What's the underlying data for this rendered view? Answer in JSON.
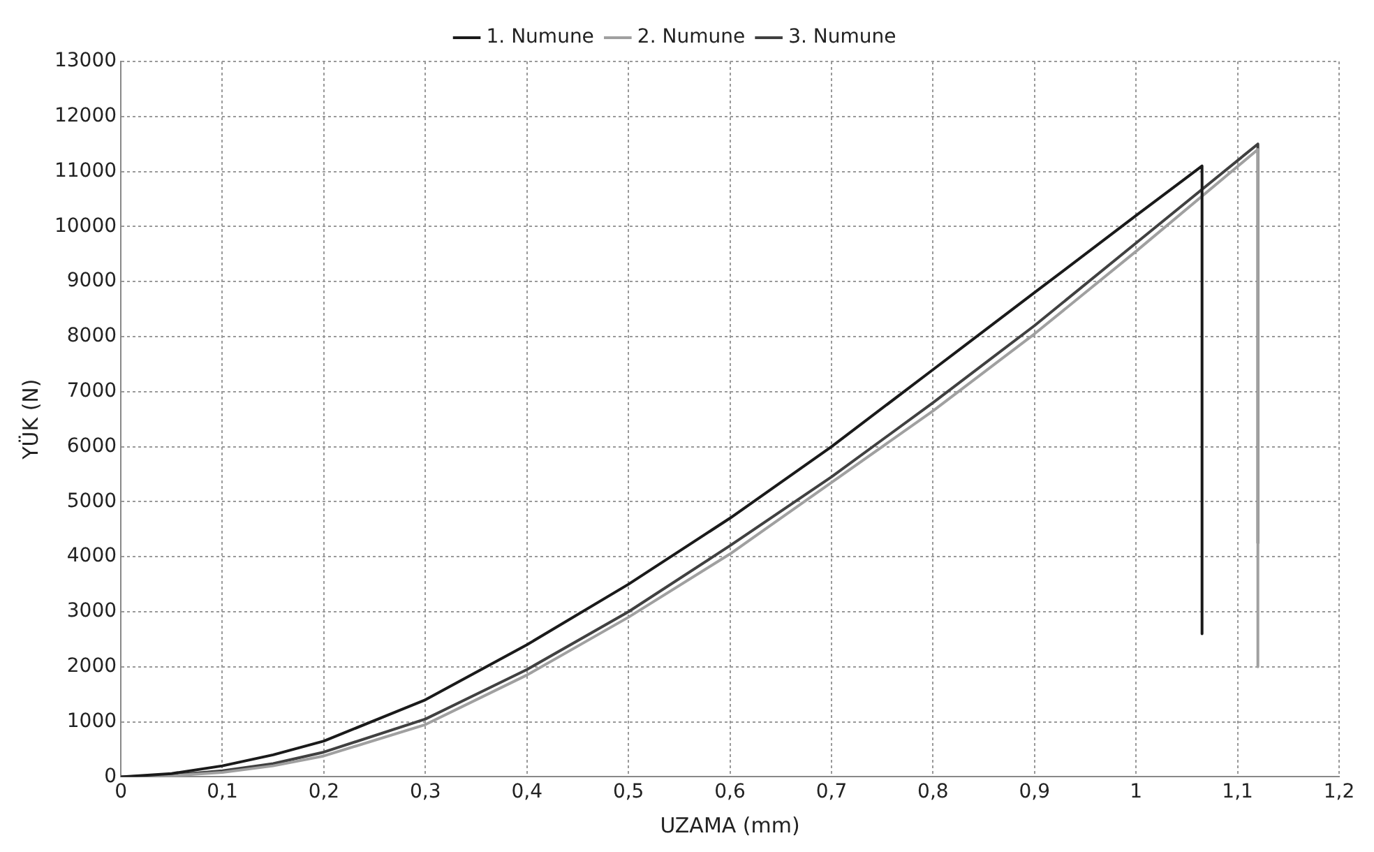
{
  "chart_data": {
    "type": "line",
    "xlabel": "UZAMA (mm)",
    "ylabel": "YÜK (N)",
    "xlim": [
      0,
      1.2
    ],
    "xticks": [
      0,
      {
        "value": 0.1,
        "label": "0,1"
      },
      {
        "value": 0.2,
        "label": "0,2"
      },
      {
        "value": 0.3,
        "label": "0,3"
      },
      {
        "value": 0.4,
        "label": "0,4"
      },
      {
        "value": 0.5,
        "label": "0,5"
      },
      {
        "value": 0.6,
        "label": "0,6"
      },
      {
        "value": 0.7,
        "label": "0,7"
      },
      {
        "value": 0.8,
        "label": "0,8"
      },
      {
        "value": 0.9,
        "label": "0,9"
      },
      1,
      {
        "value": 1.1,
        "label": "1,1"
      },
      {
        "value": 1.2,
        "label": "1,2"
      }
    ],
    "ylim": [
      0,
      13000
    ],
    "yticks": [
      0,
      1000,
      2000,
      3000,
      4000,
      5000,
      6000,
      7000,
      8000,
      9000,
      10000,
      11000,
      12000,
      13000
    ],
    "grid": true,
    "legend": "top",
    "marker": "none",
    "line_style": "solid",
    "series": [
      {
        "name": "1. Numune",
        "color": "#1a1a1a",
        "x": [
          0,
          0.05,
          0.1,
          0.15,
          0.2,
          0.3,
          0.4,
          0.5,
          0.6,
          0.7,
          0.8,
          0.9,
          1.0,
          1.065,
          1.065
        ],
        "values": [
          0,
          60,
          200,
          400,
          650,
          1400,
          2400,
          3500,
          4700,
          6000,
          7400,
          8800,
          10200,
          11100,
          2600
        ]
      },
      {
        "name": "2. Numune",
        "color": "#a0a0a0",
        "x": [
          0,
          0.05,
          0.1,
          0.15,
          0.2,
          0.3,
          0.4,
          0.5,
          0.6,
          0.7,
          0.8,
          0.9,
          1.0,
          1.12,
          1.12
        ],
        "values": [
          0,
          20,
          80,
          200,
          380,
          950,
          1850,
          2900,
          4050,
          5350,
          6650,
          8050,
          9550,
          11400,
          2000
        ]
      },
      {
        "name": "3. Numune",
        "color": "#404040",
        "x": [
          0,
          0.05,
          0.1,
          0.15,
          0.2,
          0.3,
          0.4,
          0.5,
          0.6,
          0.7,
          0.8,
          0.9,
          1.0,
          1.12,
          1.12
        ],
        "values": [
          0,
          30,
          110,
          240,
          450,
          1050,
          1950,
          3000,
          4200,
          5450,
          6800,
          8200,
          9700,
          11500,
          4250
        ]
      }
    ]
  }
}
